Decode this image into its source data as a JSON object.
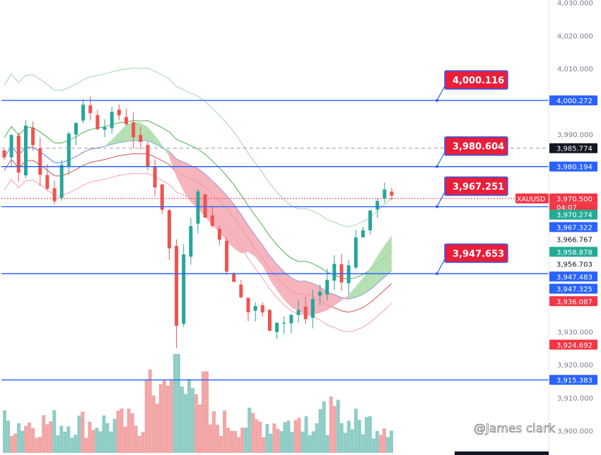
{
  "chart_data": {
    "type": "candlestick",
    "symbol": "XAUUSD",
    "countdown": "04:07",
    "ylim": [
      3893,
      4031
    ],
    "y_ticks": [
      {
        "label": "4,030.000",
        "v": 4030
      },
      {
        "label": "4,020.000",
        "v": 4020
      },
      {
        "label": "4,010.000",
        "v": 4010
      },
      {
        "label": "3,990.000",
        "v": 3990
      },
      {
        "label": "3,930.000",
        "v": 3930
      },
      {
        "label": "3,920.000",
        "v": 3920
      },
      {
        "label": "3,910.000",
        "v": 3910
      },
      {
        "label": "3,900.000",
        "v": 3900
      }
    ],
    "price_tags": [
      {
        "label": "4,000.272",
        "v": 4000.272,
        "bg": "#2962ff"
      },
      {
        "label": "3,985.774",
        "v": 3985.774,
        "bg": "#131722"
      },
      {
        "label": "3,980.194",
        "v": 3980.194,
        "bg": "#2962ff"
      },
      {
        "label": "3,970.500",
        "v": 3970.5,
        "bg": "#f23645"
      },
      {
        "label": "3,970.274",
        "v": 3965.6,
        "bg": "#22ab94"
      },
      {
        "label": "3,967.322",
        "v": 3961.8,
        "bg": "#2962ff"
      },
      {
        "label": "3,966.767",
        "v": 3958.1,
        "bg": "#ffffff"
      },
      {
        "label": "3,958.878",
        "v": 3954.3,
        "bg": "#22ab94"
      },
      {
        "label": "3,956.703",
        "v": 3950.6,
        "bg": "#ffffff"
      },
      {
        "label": "3,947.483",
        "v": 3946.8,
        "bg": "#2962ff"
      },
      {
        "label": "3,947.325",
        "v": 3943.1,
        "bg": "#2962ff"
      },
      {
        "label": "3,936.087",
        "v": 3939.3,
        "bg": "#f23645"
      },
      {
        "label": "3,924.692",
        "v": 3926.1,
        "bg": "#f23645"
      },
      {
        "label": "3,915.383",
        "v": 3915.4,
        "bg": "#2962ff"
      }
    ],
    "levels": [
      {
        "v": 4000.27,
        "color": "#2962ff",
        "style": "solid"
      },
      {
        "v": 3985.77,
        "color": "#9598a1",
        "style": "dashed"
      },
      {
        "v": 3980.19,
        "color": "#2962ff",
        "style": "solid"
      },
      {
        "v": 3970.5,
        "color": "#f23645",
        "style": "dotted"
      },
      {
        "v": 3968.0,
        "color": "#2962ff",
        "style": "solid"
      },
      {
        "v": 3947.65,
        "color": "#2962ff",
        "style": "solid"
      },
      {
        "v": 3915.38,
        "color": "#2962ff",
        "style": "solid"
      }
    ],
    "callouts": [
      {
        "label": "4,000.116",
        "v": 4000.27
      },
      {
        "label": "3,980.604",
        "v": 3980.19
      },
      {
        "label": "3,967.251",
        "v": 3968.0
      },
      {
        "label": "3,947.653",
        "v": 3947.65
      }
    ],
    "close_path": [
      3983,
      3990,
      3978,
      3992,
      3986,
      3979,
      3975,
      3970,
      3982,
      3990,
      3994,
      4000,
      3996,
      3993,
      3994,
      3995,
      3996,
      3994,
      3990,
      3986,
      3980,
      3975,
      3968,
      3955,
      3932,
      3955,
      3964,
      3972,
      3966,
      3962,
      3958,
      3950,
      3944,
      3940,
      3936,
      3938,
      3935,
      3932,
      3934,
      3933,
      3935,
      3936,
      3934,
      3940,
      3942,
      3946,
      3950,
      3945,
      3952,
      3958,
      3962,
      3965,
      3971,
      3974,
      3970
    ],
    "colors": {
      "up": "#26a69a",
      "down": "#ef5350",
      "up_vol": "#8fcdc6",
      "down_vol": "#f2a6a6",
      "cloud_down": "#f4a7b0",
      "cloud_up": "#a8dba6"
    },
    "watermark": "@James clark"
  }
}
